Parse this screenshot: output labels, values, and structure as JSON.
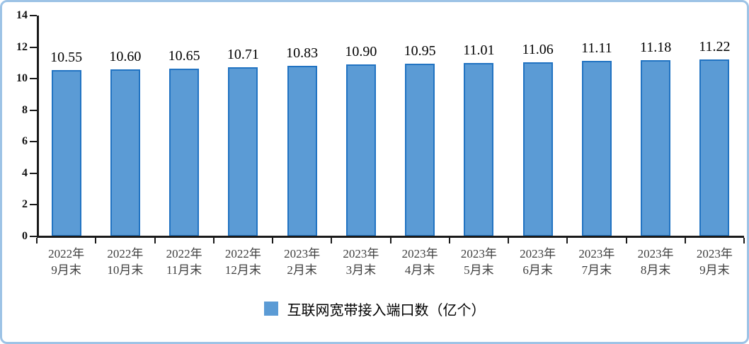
{
  "chart_data": {
    "type": "bar",
    "legend_label": "互联网宽带接入端口数（亿个）",
    "categories": [
      [
        "2022年",
        "9月末"
      ],
      [
        "2022年",
        "10月末"
      ],
      [
        "2022年",
        "11月末"
      ],
      [
        "2022年",
        "12月末"
      ],
      [
        "2023年",
        "2月末"
      ],
      [
        "2023年",
        "3月末"
      ],
      [
        "2023年",
        "4月末"
      ],
      [
        "2023年",
        "5月末"
      ],
      [
        "2023年",
        "6月末"
      ],
      [
        "2023年",
        "7月末"
      ],
      [
        "2023年",
        "8月末"
      ],
      [
        "2023年",
        "9月末"
      ]
    ],
    "values": [
      10.55,
      10.6,
      10.65,
      10.71,
      10.83,
      10.9,
      10.95,
      11.01,
      11.06,
      11.11,
      11.18,
      11.22
    ],
    "value_label_decimals": 2,
    "ylim": [
      0,
      14
    ],
    "yticks": [
      0,
      2,
      4,
      6,
      8,
      10,
      12,
      14
    ],
    "grid": false,
    "legend_position": "bottom",
    "colors": {
      "bar_fill": "#5B9BD5",
      "bar_border": "#2173C2",
      "frame_border": "#9DC3E6",
      "axis_line": "#1a1a1a",
      "x_label": "#3F3F3F",
      "y_label": "#111111",
      "value_label": "#000000",
      "legend_text": "#000000"
    }
  }
}
